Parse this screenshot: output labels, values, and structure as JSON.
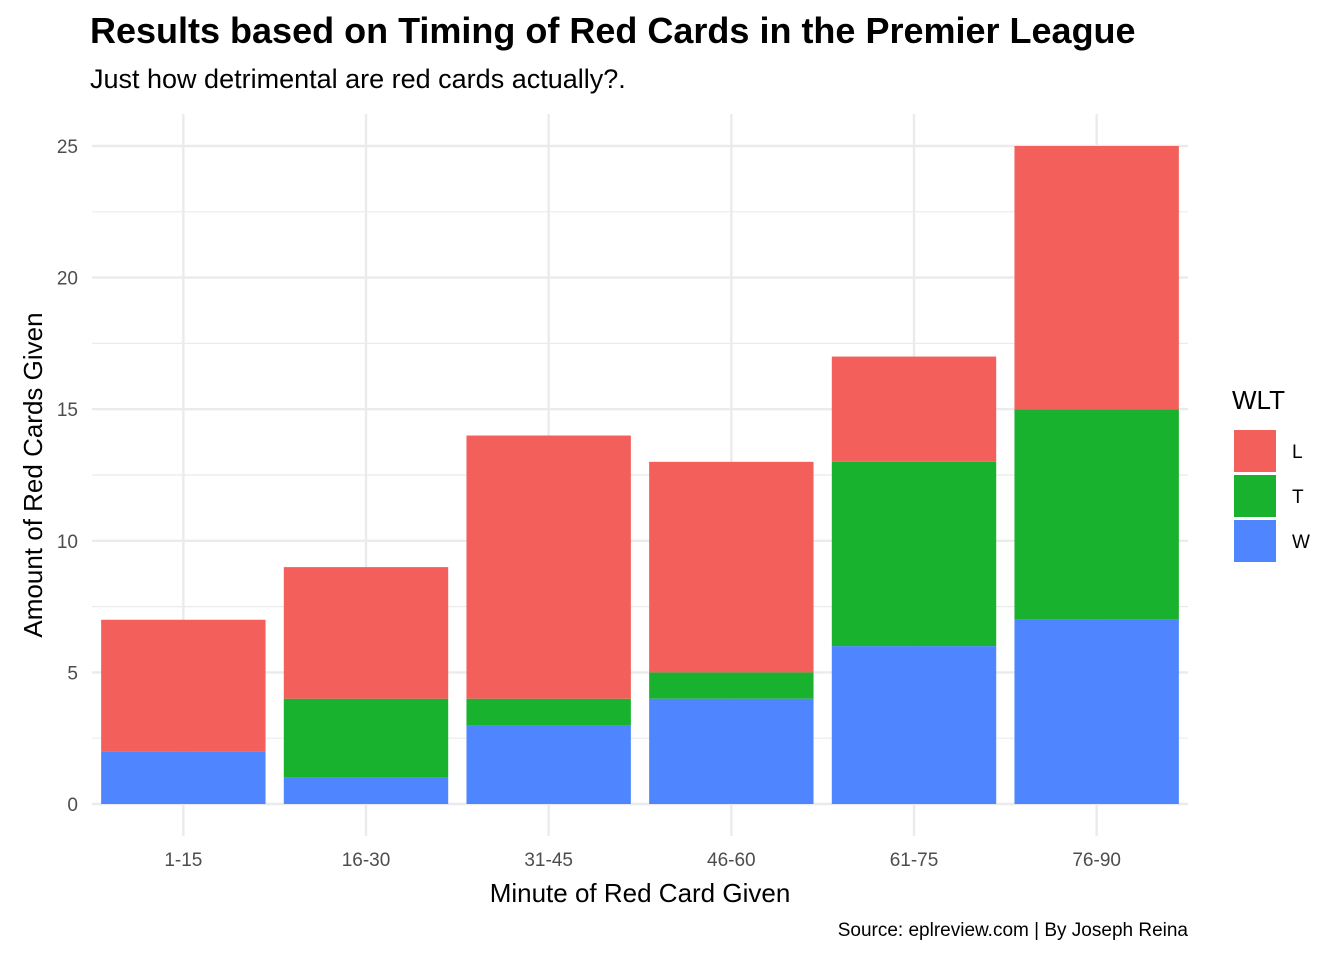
{
  "chart_data": {
    "type": "bar",
    "stacked": true,
    "title": "Results based on Timing of Red Cards in the Premier League",
    "subtitle": "Just how detrimental are red cards actually?.",
    "caption": "Source: eplreview.com | By Joseph Reina",
    "xlabel": "Minute of Red Card Given",
    "ylabel": "Amount of Red Cards Given",
    "categories": [
      "1-15",
      "16-30",
      "31-45",
      "46-60",
      "61-75",
      "76-90"
    ],
    "series": [
      {
        "name": "W",
        "color": "#4F86FF",
        "values": [
          2,
          1,
          3,
          4,
          6,
          7
        ]
      },
      {
        "name": "T",
        "color": "#19B22F",
        "values": [
          0,
          3,
          1,
          1,
          7,
          8
        ]
      },
      {
        "name": "L",
        "color": "#F35F5B",
        "values": [
          5,
          5,
          10,
          8,
          4,
          10
        ]
      }
    ],
    "stack_order": [
      "W",
      "T",
      "L"
    ],
    "legend": {
      "title": "WLT",
      "order": [
        "L",
        "T",
        "W"
      ],
      "position": "right"
    },
    "ylim": [
      0,
      26
    ],
    "yticks": [
      0,
      5,
      10,
      15,
      20,
      25
    ],
    "grid": true,
    "gridline_color": "#EBEBEB"
  }
}
